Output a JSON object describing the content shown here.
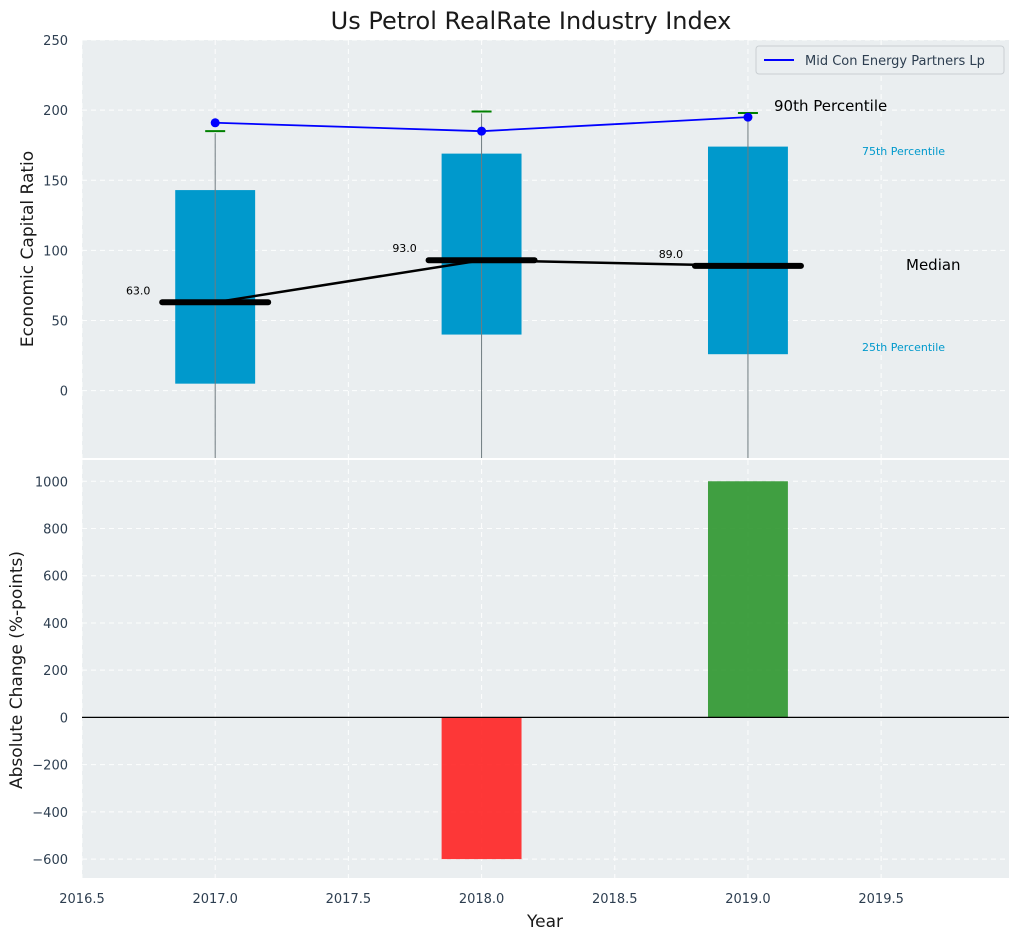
{
  "chart_data": {
    "title": "Us Petrol RealRate Industry Index",
    "xlabel": "Year",
    "x_ticks": [
      "2016.5",
      "2017.0",
      "2017.5",
      "2018.0",
      "2018.5",
      "2019.0",
      "2019.5"
    ],
    "xlim": [
      2016.5,
      2019.98
    ],
    "grid": true,
    "legend_position": "top-right",
    "panels": [
      {
        "type": "box",
        "ylabel": "Economic Capital Ratio",
        "ylim": [
          -48,
          250
        ],
        "y_ticks": [
          "0",
          "50",
          "100",
          "150",
          "200",
          "250"
        ],
        "box_color": "#0099cc",
        "boxes": [
          {
            "x": 2017,
            "p25": 5,
            "p75": 143,
            "median": 63,
            "median_label": "63.0",
            "p90": 185
          },
          {
            "x": 2018,
            "p25": 40,
            "p75": 169,
            "median": 93,
            "median_label": "93.0",
            "p90": 199
          },
          {
            "x": 2019,
            "p25": 26,
            "p75": 174,
            "median": 89,
            "median_label": "89.0",
            "p90": 198
          }
        ],
        "company_series": {
          "name": "Mid Con Energy Partners Lp",
          "color": "#0000ff",
          "x": [
            2017,
            2018,
            2019
          ],
          "values": [
            191,
            185,
            195
          ]
        },
        "annotations": {
          "p90": "90th Percentile",
          "p75": "75th Percentile",
          "median": "Median",
          "p25": "25th Percentile"
        }
      },
      {
        "type": "bar",
        "ylabel": "Absolute Change (%-points)",
        "ylim": [
          -680,
          1090
        ],
        "y_ticks": [
          "−600",
          "−400",
          "−200",
          "0",
          "200",
          "400",
          "600",
          "800",
          "1000"
        ],
        "x": [
          2018,
          2019
        ],
        "values": [
          -600,
          1000
        ],
        "colors": [
          "#ff2222",
          "#2e962e"
        ]
      }
    ]
  }
}
